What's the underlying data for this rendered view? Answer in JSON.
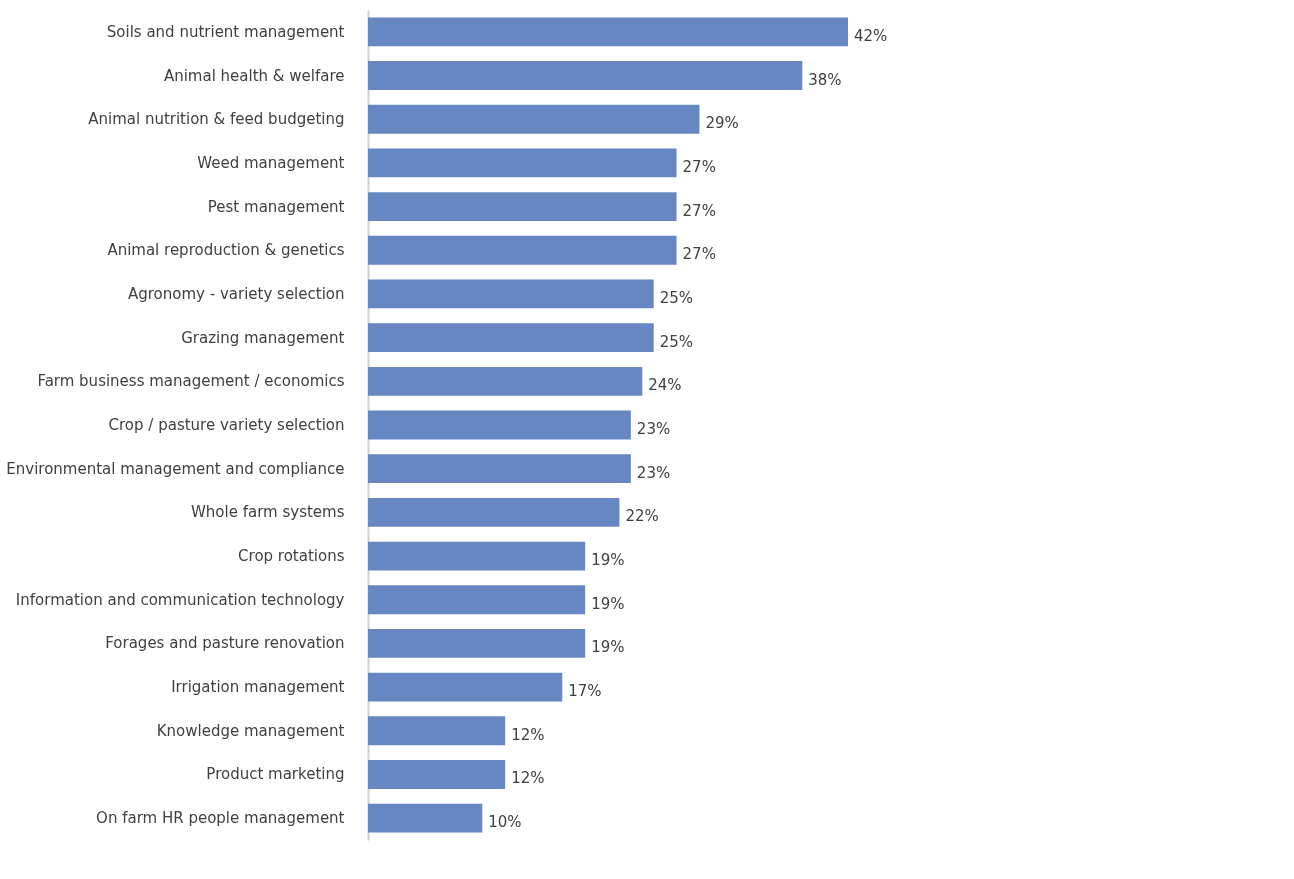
{
  "chart_data": {
    "type": "bar",
    "orientation": "horizontal",
    "categories": [
      "Soils and nutrient management",
      "Animal health & welfare",
      "Animal nutrition & feed budgeting",
      "Weed management",
      "Pest management",
      "Animal reproduction & genetics",
      "Agronomy - variety selection",
      "Grazing management",
      "Farm business management / economics",
      "Crop / pasture variety selection",
      "Environmental management and compliance",
      "Whole farm systems",
      "Crop rotations",
      "Information and communication technology",
      "Forages and pasture renovation",
      "Irrigation management",
      "Knowledge management",
      "Product marketing",
      "On farm HR people management"
    ],
    "values": [
      42,
      38,
      29,
      27,
      27,
      27,
      25,
      25,
      24,
      23,
      23,
      22,
      19,
      19,
      19,
      17,
      12,
      12,
      10
    ],
    "value_labels": [
      "42%",
      "38%",
      "29%",
      "27%",
      "27%",
      "27%",
      "25%",
      "25%",
      "24%",
      "23%",
      "23%",
      "22%",
      "19%",
      "19%",
      "19%",
      "17%",
      "12%",
      "12%",
      "10%"
    ],
    "color": "#6787c3"
  }
}
